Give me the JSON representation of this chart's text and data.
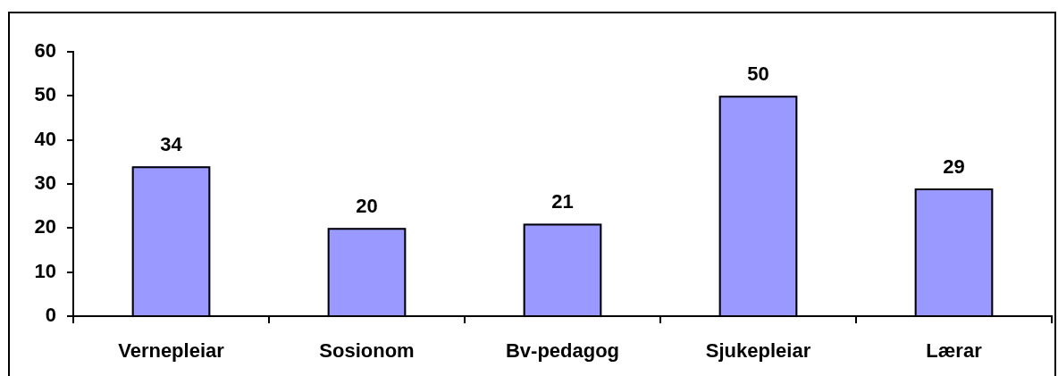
{
  "chart_data": {
    "type": "bar",
    "categories": [
      "Vernepleiar",
      "Sosionom",
      "Bv-pedagog",
      "Sjukepleiar",
      "Lærar"
    ],
    "values": [
      34,
      20,
      21,
      50,
      29
    ],
    "color": "#9999ff",
    "ylim": [
      0,
      60
    ],
    "yticks": [
      0,
      10,
      20,
      30,
      40,
      50,
      60
    ],
    "grid": false,
    "legend": false,
    "data_labels": true
  }
}
